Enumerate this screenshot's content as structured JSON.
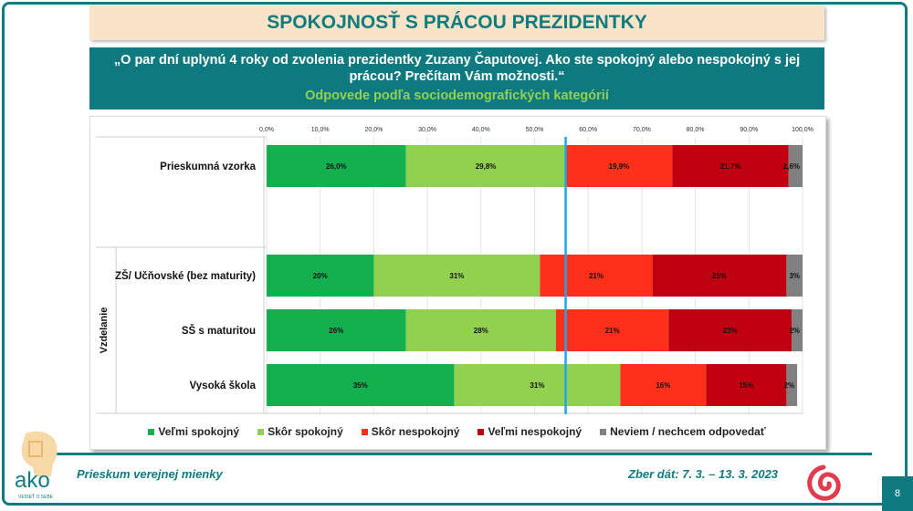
{
  "title": "SPOKOJNOSŤ S PRÁCOU PREZIDENTKY",
  "question": "„O par dní uplynú 4 roky od zvolenia prezidentky Zuzany Čaputovej. Ako ste spokojný alebo nespokojný s jej prácou? Prečítam Vám možnosti.“",
  "subtitle": "Odpovede podľa sociodemografických kategórií",
  "chart_data": {
    "type": "bar",
    "orientation": "horizontal-stacked",
    "xlim": [
      0,
      100
    ],
    "x_ticks": [
      "0,0%",
      "10,0%",
      "20,0%",
      "30,0%",
      "40,0%",
      "50,0%",
      "60,0%",
      "70,0%",
      "80,0%",
      "90,0%",
      "100,0%"
    ],
    "group_label": "Vzdelanie",
    "categories": [
      "Prieskumná vzorka",
      "ZŠ/ Učňovské (bez maturity)",
      "SŠ s maturitou",
      "Vysoká škola"
    ],
    "series": [
      {
        "name": "Veľmi spokojný",
        "color": "#14b050",
        "values": [
          26.0,
          20,
          26,
          35
        ],
        "labels": [
          "26,0%",
          "20%",
          "26%",
          "35%"
        ]
      },
      {
        "name": "Skôr spokojný",
        "color": "#92d050",
        "values": [
          29.8,
          31,
          28,
          31
        ],
        "labels": [
          "29,8%",
          "31%",
          "28%",
          "31%"
        ]
      },
      {
        "name": "Skôr nespokojný",
        "color": "#ff3019",
        "values": [
          19.9,
          21,
          21,
          16
        ],
        "labels": [
          "19,9%",
          "21%",
          "21%",
          "16%"
        ]
      },
      {
        "name": "Veľmi nespokojný",
        "color": "#c00010",
        "values": [
          21.7,
          25,
          23,
          15
        ],
        "labels": [
          "21,7%",
          "25%",
          "23%",
          "15%"
        ]
      },
      {
        "name": "Neviem / nechcem odpovedať",
        "color": "#808080",
        "values": [
          2.6,
          3,
          2,
          2
        ],
        "labels": [
          "2,6%",
          "3%",
          "2%",
          "2%"
        ]
      }
    ],
    "reference_line": {
      "x": 55.8,
      "color": "#1ea7e8"
    },
    "grid": true,
    "legend": "bottom"
  },
  "footer": {
    "left": "Prieskum verejnej mienky",
    "right": "Zber dát: 7. 3. – 13. 3. 2023",
    "page": "8",
    "logo": "ako",
    "logo_tagline": "VEDIEŤ O SEBE"
  }
}
